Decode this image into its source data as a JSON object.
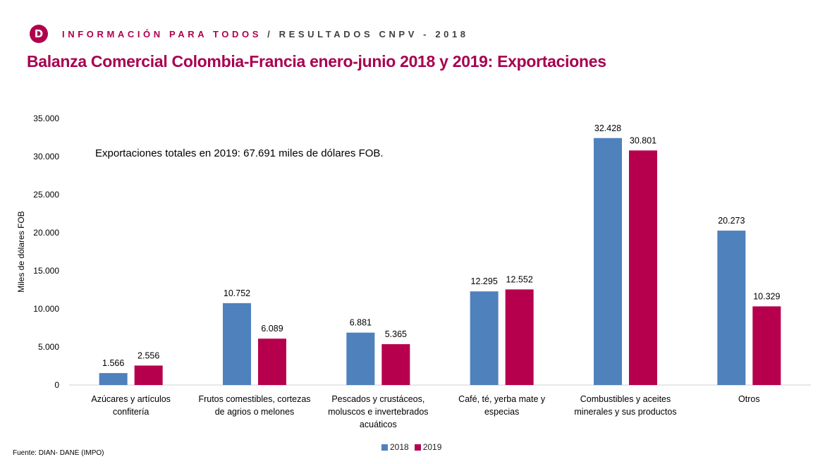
{
  "header": {
    "logo_letter": "D",
    "brand_text": "INFORMACIÓN PARA TODOS",
    "separator": " / ",
    "sub_text": "RESULTADOS CNPV - 2018"
  },
  "source_note": "Fuente: DIAN- DANE (IMPO)",
  "colors": {
    "brand": "#b0004e",
    "series_2018": "#4f81bd",
    "series_2019": "#b6004e"
  },
  "chart_data": {
    "type": "bar",
    "title": "Balanza Comercial Colombia-Francia enero-junio 2018 y 2019: Exportaciones",
    "annotation": "Exportaciones totales en 2019: 67.691 miles de dólares FOB.",
    "xlabel": "",
    "ylabel": "Miles de dólares FOB",
    "ylim": [
      0,
      35000
    ],
    "yticks": [
      0,
      5000,
      10000,
      15000,
      20000,
      25000,
      30000,
      35000
    ],
    "ytick_labels": [
      "0",
      "5.000",
      "10.000",
      "15.000",
      "20.000",
      "25.000",
      "30.000",
      "35.000"
    ],
    "grid": false,
    "legend_position": "bottom",
    "categories": [
      [
        "Azúcares y artículos",
        "confitería"
      ],
      [
        "Frutos comestibles, cortezas",
        "de agrios o melones"
      ],
      [
        "Pescados y crustáceos,",
        "moluscos e invertebrados",
        "acuáticos"
      ],
      [
        "Café, té, yerba mate y",
        "especias"
      ],
      [
        "Combustibles y aceites",
        "minerales y sus productos"
      ],
      [
        "Otros"
      ]
    ],
    "series": [
      {
        "name": "2018",
        "color": "#4f81bd",
        "values": [
          1566,
          10752,
          6881,
          12295,
          32428,
          20273
        ],
        "labels": [
          "1.566",
          "10.752",
          "6.881",
          "12.295",
          "32.428",
          "20.273"
        ]
      },
      {
        "name": "2019",
        "color": "#b6004e",
        "values": [
          2556,
          6089,
          5365,
          12552,
          30801,
          10329
        ],
        "labels": [
          "2.556",
          "6.089",
          "5.365",
          "12.552",
          "30.801",
          "10.329"
        ]
      }
    ]
  }
}
